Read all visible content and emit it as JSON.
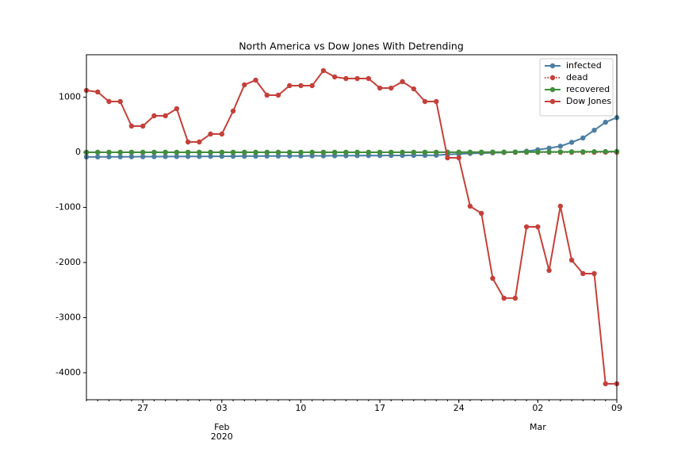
{
  "chart_data": {
    "type": "line",
    "title": "North America vs Dow Jones With Detrending",
    "x": [
      "2020-01-22",
      "2020-01-23",
      "2020-01-24",
      "2020-01-25",
      "2020-01-26",
      "2020-01-27",
      "2020-01-28",
      "2020-01-29",
      "2020-01-30",
      "2020-01-31",
      "2020-02-01",
      "2020-02-02",
      "2020-02-03",
      "2020-02-04",
      "2020-02-05",
      "2020-02-06",
      "2020-02-07",
      "2020-02-08",
      "2020-02-09",
      "2020-02-10",
      "2020-02-11",
      "2020-02-12",
      "2020-02-13",
      "2020-02-14",
      "2020-02-15",
      "2020-02-16",
      "2020-02-17",
      "2020-02-18",
      "2020-02-19",
      "2020-02-20",
      "2020-02-21",
      "2020-02-22",
      "2020-02-23",
      "2020-02-24",
      "2020-02-25",
      "2020-02-26",
      "2020-02-27",
      "2020-02-28",
      "2020-02-29",
      "2020-03-01",
      "2020-03-02",
      "2020-03-03",
      "2020-03-04",
      "2020-03-05",
      "2020-03-06",
      "2020-03-07",
      "2020-03-08",
      "2020-03-09"
    ],
    "series": [
      {
        "name": "infected",
        "color": "#4b7ea3",
        "linestyle": "solid",
        "values": [
          -85,
          -84,
          -83,
          -82,
          -81,
          -80,
          -79,
          -78,
          -77,
          -76,
          -75,
          -74,
          -73,
          -72,
          -71,
          -70,
          -69,
          -68,
          -67,
          -66,
          -65,
          -64,
          -63,
          -62,
          -61,
          -60,
          -59,
          -58,
          -57,
          -56,
          -55,
          -54,
          -40,
          -30,
          -22,
          -15,
          -10,
          -3,
          5,
          20,
          45,
          75,
          110,
          180,
          260,
          400,
          545,
          630
        ]
      },
      {
        "name": "dead",
        "color": "#c5403a",
        "linestyle": "dotted",
        "values": [
          -1,
          -1,
          -1,
          -1,
          -1,
          -1,
          -1,
          -1,
          -1,
          -1,
          -1,
          -1,
          -1,
          -1,
          -1,
          -1,
          -1,
          -1,
          -1,
          -1,
          -1,
          -1,
          -1,
          -1,
          -1,
          -1,
          -1,
          -1,
          -1,
          -1,
          -1,
          -1,
          -1,
          -1,
          -1,
          -1,
          -1,
          -1,
          -1,
          0,
          0,
          0,
          0,
          1,
          1,
          1,
          2,
          2
        ]
      },
      {
        "name": "recovered",
        "color": "#3f8f3c",
        "linestyle": "solid",
        "values": [
          0,
          0,
          0,
          0,
          0,
          0,
          0,
          0,
          0,
          0,
          0,
          0,
          0,
          0,
          0,
          0,
          0,
          0,
          0,
          0,
          0,
          0,
          0,
          0,
          0,
          0,
          0,
          0,
          0,
          0,
          1,
          1,
          2,
          2,
          3,
          3,
          4,
          4,
          5,
          5,
          6,
          7,
          8,
          9,
          10,
          11,
          13,
          15
        ]
      },
      {
        "name": "Dow Jones",
        "color": "#c5403a",
        "linestyle": "solid",
        "values": [
          1122,
          1094,
          921,
          921,
          475,
          475,
          662,
          662,
          791,
          187,
          187,
          331,
          331,
          748,
          1223,
          1309,
          1036,
          1036,
          1209,
          1209,
          1209,
          1482,
          1367,
          1338,
          1338,
          1338,
          1165,
          1165,
          1281,
          1151,
          921,
          921,
          -101,
          -101,
          -978,
          -1108,
          -2288,
          -2647,
          -2647,
          -1353,
          -1353,
          -2144,
          -978,
          -1957,
          -2201,
          -2201,
          -4201,
          -4201
        ]
      }
    ],
    "xlim": [
      "2020-01-22",
      "2020-03-09"
    ],
    "xticks": [
      {
        "value": "2020-01-27",
        "label": "27"
      },
      {
        "value": "2020-02-03",
        "label": "03"
      },
      {
        "value": "2020-02-10",
        "label": "10"
      },
      {
        "value": "2020-02-17",
        "label": "17"
      },
      {
        "value": "2020-02-24",
        "label": "24"
      },
      {
        "value": "2020-03-02",
        "label": "02"
      },
      {
        "value": "2020-03-09",
        "label": "09"
      }
    ],
    "x_period_labels": [
      {
        "value": "2020-02-03",
        "label": "Feb",
        "sublabel": "2020"
      },
      {
        "value": "2020-03-02",
        "label": "Mar"
      }
    ],
    "ylim": [
      -4490,
      1770
    ],
    "yticks": [
      -4000,
      -3000,
      -2000,
      -1000,
      0,
      1000
    ],
    "grid": false,
    "legend": "upper right"
  }
}
